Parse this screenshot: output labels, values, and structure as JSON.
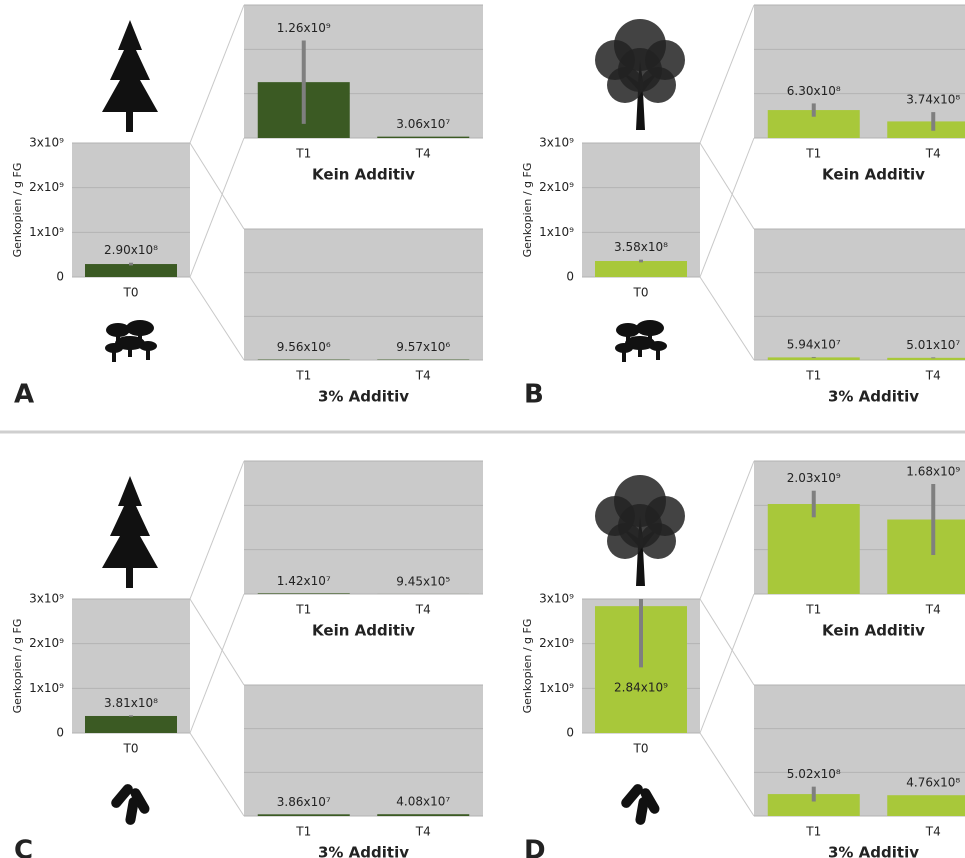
{
  "chart_data": [
    {
      "type": "bar",
      "panel": "A",
      "ylabel": "Genkopien / g FG",
      "categories": [
        "T0"
      ],
      "values": [
        290000000
      ],
      "errors": [
        30000000
      ],
      "value_labels": [
        "2.90x10⁸"
      ],
      "color": "#3b5a23",
      "ylim": [
        0,
        3000000000
      ],
      "yticks": [
        0,
        {
          "value": 1000000000,
          "label": "1x10⁹"
        },
        {
          "value": 2000000000,
          "label": "2x10⁹"
        },
        {
          "value": 3000000000,
          "label": "3x10⁹"
        }
      ],
      "grid": true
    },
    {
      "type": "bar",
      "title": "Kein Additiv",
      "categories": [
        "T1",
        "T4"
      ],
      "values": [
        1260000000,
        30600000
      ],
      "errors": [
        940000000,
        0
      ],
      "value_labels": [
        "1.26x10⁹",
        "3.06x10⁷"
      ],
      "color": "#3b5a23",
      "ylim": [
        0,
        3000000000
      ],
      "yticks": [
        0,
        1000000000,
        2000000000,
        3000000000
      ],
      "grid": true
    },
    {
      "type": "bar",
      "title": "3% Additiv",
      "categories": [
        "T1",
        "T4"
      ],
      "values": [
        9560000,
        9570000
      ],
      "errors": [
        0,
        0
      ],
      "value_labels": [
        "9.56x10⁶",
        "9.57x10⁶"
      ],
      "color": "#3b5a23",
      "ylim": [
        0,
        3000000000
      ],
      "yticks": [
        0,
        1000000000,
        2000000000,
        3000000000
      ],
      "grid": true
    },
    {
      "type": "bar",
      "panel": "B",
      "ylabel": "Genkopien / g FG",
      "categories": [
        "T0"
      ],
      "values": [
        358000000
      ],
      "errors": [
        30000000
      ],
      "value_labels": [
        "3.58x10⁸"
      ],
      "color": "#a8c83a",
      "ylim": [
        0,
        3000000000
      ],
      "yticks": [
        0,
        {
          "value": 1000000000,
          "label": "1x10⁹"
        },
        {
          "value": 2000000000,
          "label": "2x10⁹"
        },
        {
          "value": 3000000000,
          "label": "3x10⁹"
        }
      ],
      "grid": true
    },
    {
      "type": "bar",
      "title": "Kein Additiv",
      "categories": [
        "T1",
        "T4"
      ],
      "values": [
        630000000,
        374000000
      ],
      "errors": [
        150000000,
        210000000
      ],
      "value_labels": [
        "6.30x10⁸",
        "3.74x10⁸"
      ],
      "color": "#a8c83a",
      "ylim": [
        0,
        3000000000
      ],
      "yticks": [
        0,
        1000000000,
        2000000000,
        3000000000
      ],
      "grid": true
    },
    {
      "type": "bar",
      "title": "3% Additiv",
      "categories": [
        "T1",
        "T4"
      ],
      "values": [
        59400000,
        50100000
      ],
      "errors": [
        10000000,
        10000000
      ],
      "value_labels": [
        "5.94x10⁷",
        "5.01x10⁷"
      ],
      "color": "#a8c83a",
      "ylim": [
        0,
        3000000000
      ],
      "yticks": [
        0,
        1000000000,
        2000000000,
        3000000000
      ],
      "grid": true
    },
    {
      "type": "bar",
      "panel": "C",
      "ylabel": "Genkopien / g FG",
      "categories": [
        "T0"
      ],
      "values": [
        381000000
      ],
      "errors": [
        15000000
      ],
      "value_labels": [
        "3.81x10⁸"
      ],
      "color": "#3b5a23",
      "ylim": [
        0,
        3000000000
      ],
      "yticks": [
        0,
        {
          "value": 1000000000,
          "label": "1x10⁹"
        },
        {
          "value": 2000000000,
          "label": "2x10⁹"
        },
        {
          "value": 3000000000,
          "label": "3x10⁹"
        }
      ],
      "grid": true
    },
    {
      "type": "bar",
      "title": "Kein Additiv",
      "categories": [
        "T1",
        "T4"
      ],
      "values": [
        14200000,
        945000
      ],
      "errors": [
        0,
        0
      ],
      "value_labels": [
        "1.42x10⁷",
        "9.45x10⁵"
      ],
      "color": "#3b5a23",
      "ylim": [
        0,
        3000000000
      ],
      "yticks": [
        0,
        1000000000,
        2000000000,
        3000000000
      ],
      "grid": true
    },
    {
      "type": "bar",
      "title": "3% Additiv",
      "categories": [
        "T1",
        "T4"
      ],
      "values": [
        38600000,
        40800000
      ],
      "errors": [
        0,
        0
      ],
      "value_labels": [
        "3.86x10⁷",
        "4.08x10⁷"
      ],
      "color": "#3b5a23",
      "ylim": [
        0,
        3000000000
      ],
      "yticks": [
        0,
        1000000000,
        2000000000,
        3000000000
      ],
      "grid": true
    },
    {
      "type": "bar",
      "panel": "D",
      "ylabel": "Genkopien / g FG",
      "categories": [
        "T0"
      ],
      "values": [
        2840000000
      ],
      "errors": [
        1370000000
      ],
      "value_labels": [
        "2.84x10⁹"
      ],
      "color": "#a8c83a",
      "ylim": [
        0,
        3000000000
      ],
      "yticks": [
        0,
        {
          "value": 1000000000,
          "label": "1x10⁹"
        },
        {
          "value": 2000000000,
          "label": "2x10⁹"
        },
        {
          "value": 3000000000,
          "label": "3x10⁹"
        }
      ],
      "grid": true
    },
    {
      "type": "bar",
      "title": "Kein Additiv",
      "categories": [
        "T1",
        "T4"
      ],
      "values": [
        2030000000,
        1680000000
      ],
      "errors": [
        300000000,
        800000000
      ],
      "value_labels": [
        "2.03x10⁹",
        "1.68x10⁹"
      ],
      "color": "#a8c83a",
      "ylim": [
        0,
        3000000000
      ],
      "yticks": [
        0,
        1000000000,
        2000000000,
        3000000000
      ],
      "grid": true
    },
    {
      "type": "bar",
      "title": "3% Additiv",
      "categories": [
        "T1",
        "T4"
      ],
      "values": [
        502000000,
        476000000
      ],
      "errors": [
        170000000,
        0
      ],
      "value_labels": [
        "5.02x10⁸",
        "4.76x10⁸"
      ],
      "color": "#a8c83a",
      "ylim": [
        0,
        3000000000
      ],
      "yticks": [
        0,
        1000000000,
        2000000000,
        3000000000
      ],
      "grid": true
    }
  ]
}
